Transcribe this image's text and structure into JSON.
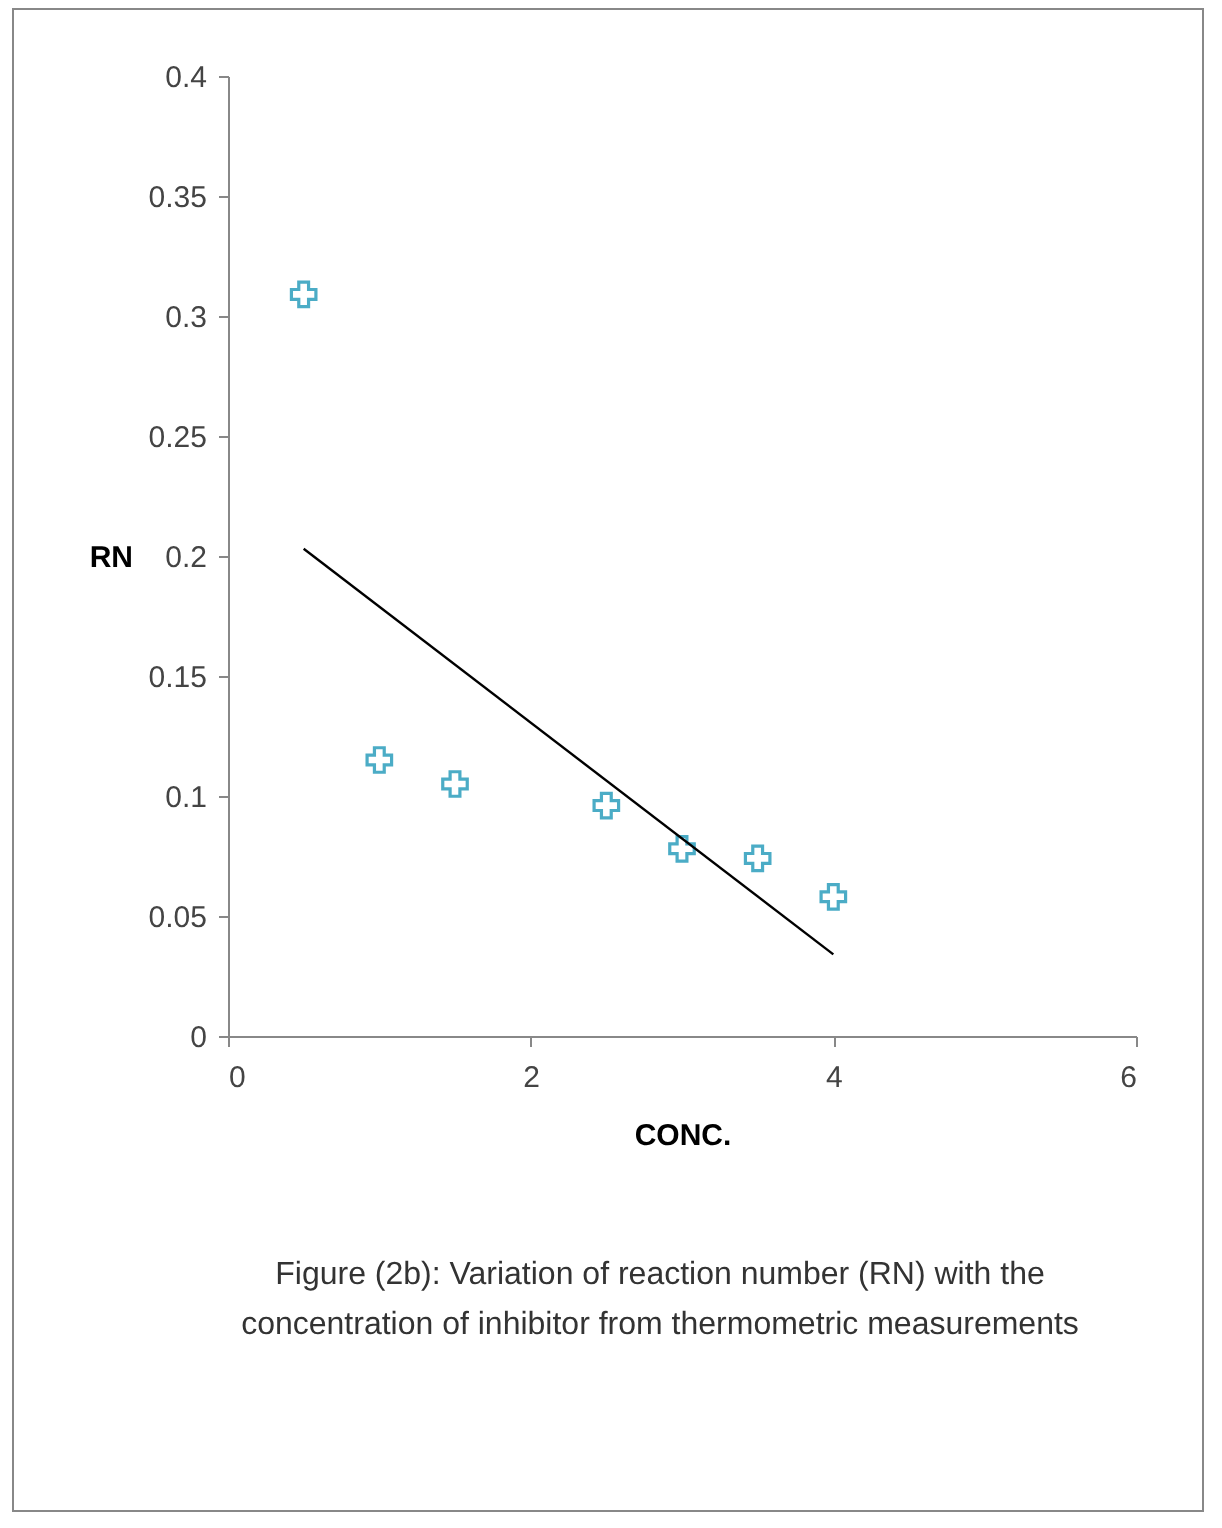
{
  "chart_data": {
    "type": "scatter",
    "xlabel": "CONC.",
    "ylabel": "RN",
    "x": [
      0.5,
      1,
      1.5,
      2.5,
      3,
      3.5,
      4
    ],
    "series": [
      {
        "color": "#4bacc6",
        "marker": "cross",
        "values": [
          0.309,
          0.115,
          0.105,
          0.096,
          0.078,
          0.074,
          0.058
        ]
      },
      {
        "type": "line",
        "color": "#000000",
        "x": [
          0.5,
          4
        ],
        "values": [
          0.203,
          0.034
        ]
      }
    ],
    "xlim": [
      0,
      6
    ],
    "xticks": [
      0,
      2,
      4,
      6
    ],
    "ylim": [
      0,
      0.4
    ],
    "yticks": [
      0,
      0.05,
      0.1,
      0.15,
      0.2,
      0.25,
      0.3,
      0.35,
      0.4
    ],
    "grid": false,
    "annotations": [
      "Figure (2b): Variation of reaction number (RN) with the concentration of inhibitor from  thermometric measurements"
    ]
  }
}
